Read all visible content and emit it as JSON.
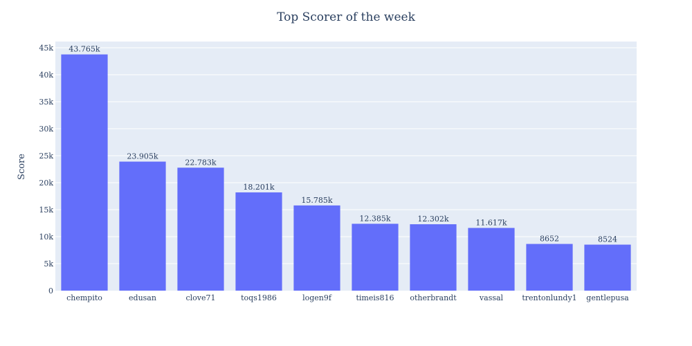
{
  "chart_data": {
    "type": "bar",
    "title": "Top Scorer of the week",
    "xlabel": "",
    "ylabel": "Score",
    "categories": [
      "chempito",
      "edusan",
      "clove71",
      "toqs1986",
      "logen9f",
      "timeis816",
      "otherbrandt",
      "vassal",
      "trentonlundy1",
      "gentlepusa"
    ],
    "values": [
      43765,
      23905,
      22783,
      18201,
      15785,
      12385,
      12302,
      11617,
      8652,
      8524
    ],
    "data_labels": [
      "43.765k",
      "23.905k",
      "22.783k",
      "18.201k",
      "15.785k",
      "12.385k",
      "12.302k",
      "11.617k",
      "8652",
      "8524"
    ],
    "ylim": [
      0,
      45000
    ],
    "yticks": [
      0,
      5000,
      10000,
      15000,
      20000,
      25000,
      30000,
      35000,
      40000,
      45000
    ],
    "ytick_labels": [
      "0",
      "5k",
      "10k",
      "15k",
      "20k",
      "25k",
      "30k",
      "35k",
      "40k",
      "45k"
    ],
    "grid": true,
    "legend": "none",
    "colors": {
      "bar": "#636efa",
      "plot_bg": "#e5ecf6",
      "grid": "#ffffff",
      "text": "#2a3f5f"
    }
  }
}
